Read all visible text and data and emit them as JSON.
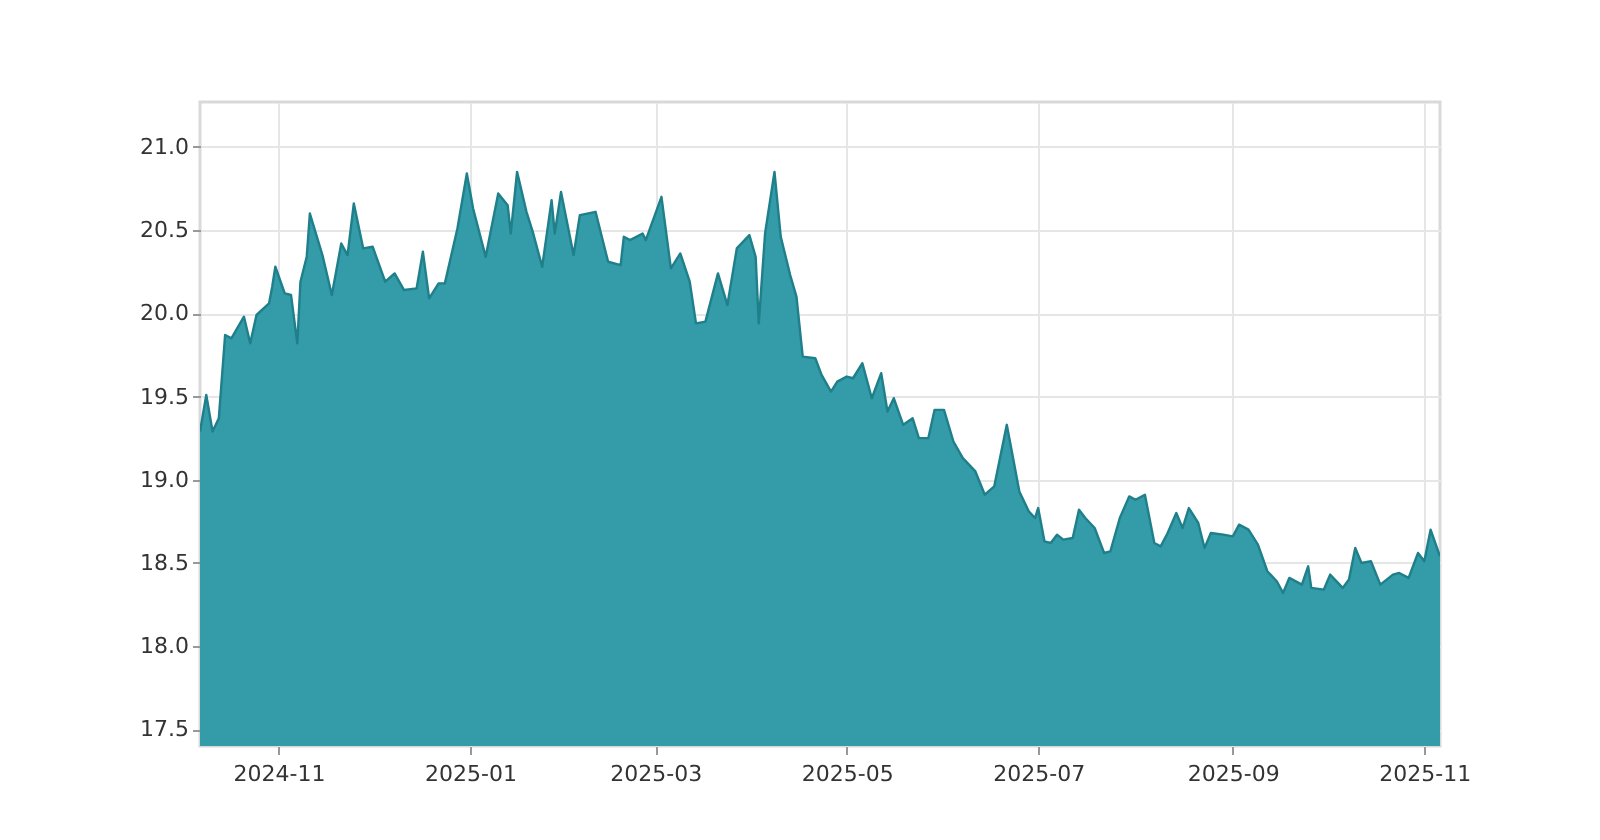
{
  "chart_data": {
    "type": "area",
    "xlim": [
      "2024-10-07",
      "2025-11-06"
    ],
    "xticks": [
      "2024-11",
      "2025-01",
      "2025-03",
      "2025-05",
      "2025-07",
      "2025-09",
      "2025-11"
    ],
    "ylim": [
      17.4,
      21.27
    ],
    "yticks": [
      {
        "value": 17.5,
        "label": "17.5"
      },
      {
        "value": 18,
        "label": "18.0"
      },
      {
        "value": 18.5,
        "label": "18.5"
      },
      {
        "value": 19,
        "label": "19.0"
      },
      {
        "value": 19.5,
        "label": "19.5"
      },
      {
        "value": 20,
        "label": "20.0"
      },
      {
        "value": 20.5,
        "label": "20.5"
      },
      {
        "value": 21,
        "label": "21.0"
      }
    ],
    "grid": true,
    "x": [
      "2024-10-07",
      "2024-10-09",
      "2024-10-11",
      "2024-10-13",
      "2024-10-15",
      "2024-10-17",
      "2024-10-21",
      "2024-10-23",
      "2024-10-25",
      "2024-10-29",
      "2024-10-30",
      "2024-10-31",
      "2024-11-03",
      "2024-11-05",
      "2024-11-07",
      "2024-11-08",
      "2024-11-10",
      "2024-11-11",
      "2024-11-15",
      "2024-11-18",
      "2024-11-21",
      "2024-11-23",
      "2024-11-25",
      "2024-11-28",
      "2024-12-01",
      "2024-12-05",
      "2024-12-08",
      "2024-12-11",
      "2024-12-15",
      "2024-12-17",
      "2024-12-19",
      "2024-12-22",
      "2024-12-24",
      "2024-12-28",
      "2024-12-31",
      "2025-01-02",
      "2025-01-06",
      "2025-01-10",
      "2025-01-13",
      "2025-01-14",
      "2025-01-16",
      "2025-01-19",
      "2025-01-21",
      "2025-01-24",
      "2025-01-27",
      "2025-01-28",
      "2025-01-30",
      "2025-02-03",
      "2025-02-05",
      "2025-02-10",
      "2025-02-14",
      "2025-02-18",
      "2025-02-19",
      "2025-02-21",
      "2025-02-25",
      "2025-02-26",
      "2025-03-03",
      "2025-03-06",
      "2025-03-09",
      "2025-03-12",
      "2025-03-14",
      "2025-03-17",
      "2025-03-21",
      "2025-03-24",
      "2025-03-27",
      "2025-03-31",
      "2025-04-02",
      "2025-04-03",
      "2025-04-05",
      "2025-04-08",
      "2025-04-10",
      "2025-04-13",
      "2025-04-15",
      "2025-04-17",
      "2025-04-21",
      "2025-04-23",
      "2025-04-26",
      "2025-04-28",
      "2025-05-01",
      "2025-05-03",
      "2025-05-06",
      "2025-05-09",
      "2025-05-12",
      "2025-05-14",
      "2025-05-16",
      "2025-05-19",
      "2025-05-22",
      "2025-05-24",
      "2025-05-27",
      "2025-05-29",
      "2025-06-01",
      "2025-06-04",
      "2025-06-07",
      "2025-06-11",
      "2025-06-14",
      "2025-06-17",
      "2025-06-21",
      "2025-06-25",
      "2025-06-28",
      "2025-06-30",
      "2025-07-01",
      "2025-07-03",
      "2025-07-05",
      "2025-07-07",
      "2025-07-09",
      "2025-07-12",
      "2025-07-14",
      "2025-07-16",
      "2025-07-19",
      "2025-07-22",
      "2025-07-24",
      "2025-07-27",
      "2025-07-30",
      "2025-08-01",
      "2025-08-04",
      "2025-08-07",
      "2025-08-09",
      "2025-08-11",
      "2025-08-14",
      "2025-08-16",
      "2025-08-18",
      "2025-08-21",
      "2025-08-23",
      "2025-08-25",
      "2025-08-29",
      "2025-09-01",
      "2025-09-03",
      "2025-09-06",
      "2025-09-09",
      "2025-09-12",
      "2025-09-15",
      "2025-09-17",
      "2025-09-19",
      "2025-09-23",
      "2025-09-25",
      "2025-09-26",
      "2025-09-30",
      "2025-10-02",
      "2025-10-06",
      "2025-10-08",
      "2025-10-10",
      "2025-10-12",
      "2025-10-15",
      "2025-10-18",
      "2025-10-22",
      "2025-10-24",
      "2025-10-27",
      "2025-10-30",
      "2025-11-01",
      "2025-11-03",
      "2025-11-06"
    ],
    "series": [
      {
        "color": "#339ca8",
        "values": [
          19.29,
          19.51,
          19.29,
          19.37,
          19.87,
          19.85,
          19.98,
          19.82,
          19.99,
          20.06,
          20.16,
          20.28,
          20.12,
          20.11,
          19.82,
          20.19,
          20.34,
          20.6,
          20.35,
          20.11,
          20.42,
          20.35,
          20.66,
          20.39,
          20.4,
          20.19,
          20.24,
          20.14,
          20.15,
          20.37,
          20.09,
          20.18,
          20.18,
          20.51,
          20.84,
          20.63,
          20.34,
          20.72,
          20.65,
          20.48,
          20.85,
          20.61,
          20.49,
          20.28,
          20.68,
          20.48,
          20.73,
          20.35,
          20.59,
          20.61,
          20.31,
          20.29,
          20.46,
          20.44,
          20.48,
          20.44,
          20.7,
          20.27,
          20.36,
          20.19,
          19.94,
          19.95,
          20.24,
          20.05,
          20.39,
          20.47,
          20.34,
          19.94,
          20.48,
          20.85,
          20.46,
          20.23,
          20.1,
          19.74,
          19.73,
          19.63,
          19.53,
          19.59,
          19.62,
          19.61,
          19.7,
          19.49,
          19.64,
          19.41,
          19.49,
          19.33,
          19.37,
          19.25,
          19.25,
          19.42,
          19.42,
          19.23,
          19.13,
          19.05,
          18.91,
          18.96,
          19.33,
          18.93,
          18.81,
          18.77,
          18.83,
          18.63,
          18.62,
          18.67,
          18.64,
          18.65,
          18.82,
          18.77,
          18.71,
          18.56,
          18.57,
          18.77,
          18.9,
          18.88,
          18.91,
          18.62,
          18.6,
          18.67,
          18.8,
          18.71,
          18.83,
          18.74,
          18.59,
          18.68,
          18.67,
          18.66,
          18.73,
          18.7,
          18.61,
          18.45,
          18.39,
          18.32,
          18.41,
          18.37,
          18.48,
          18.35,
          18.34,
          18.43,
          18.35,
          18.4,
          18.59,
          18.5,
          18.51,
          18.37,
          18.43,
          18.44,
          18.41,
          18.56,
          18.51,
          18.7,
          18.54
        ]
      }
    ]
  }
}
